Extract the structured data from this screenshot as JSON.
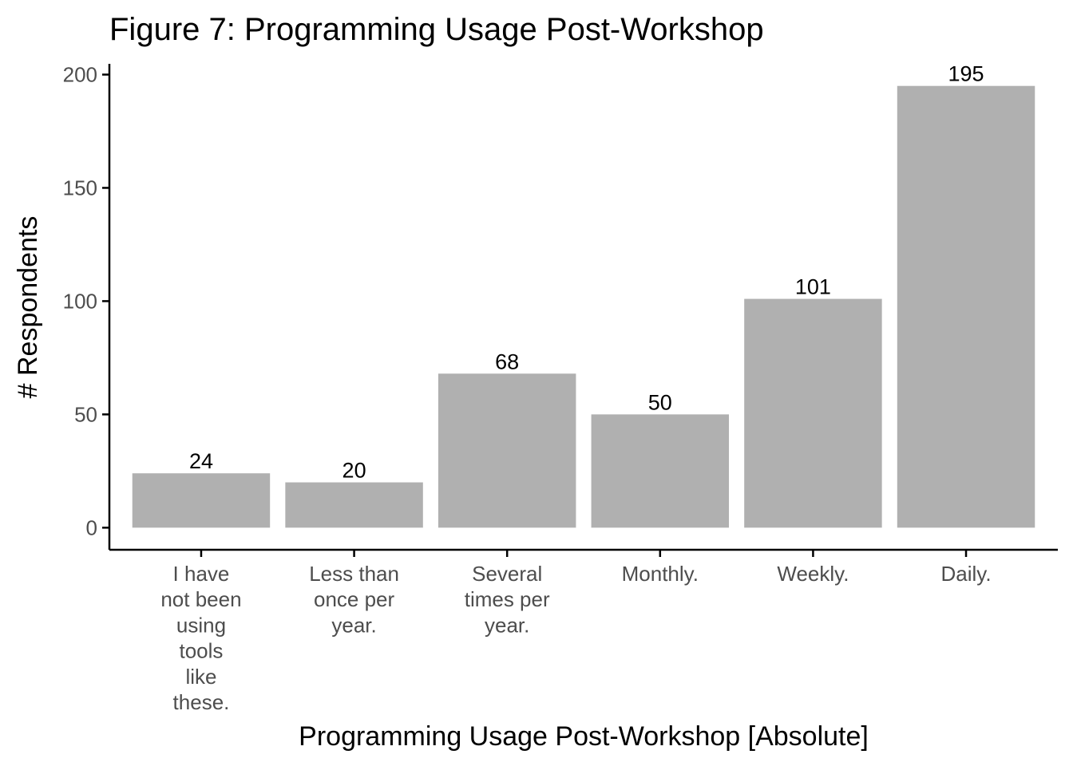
{
  "chart_data": {
    "type": "bar",
    "title": "Figure 7: Programming Usage Post-Workshop",
    "xlabel": "Programming Usage Post-Workshop [Absolute]",
    "ylabel": "# Respondents",
    "categories": [
      [
        "I have",
        "not been",
        "using",
        "tools",
        "like",
        "these."
      ],
      [
        "Less than",
        "once per",
        "year."
      ],
      [
        "Several",
        "times per",
        "year."
      ],
      [
        "Monthly."
      ],
      [
        "Weekly."
      ],
      [
        "Daily."
      ]
    ],
    "values": [
      24,
      20,
      68,
      50,
      101,
      195
    ],
    "data_labels": [
      "24",
      "20",
      "68",
      "50",
      "101",
      "195"
    ],
    "ylim": [
      -9.75,
      204.75
    ],
    "yticks": [
      0,
      50,
      100,
      150,
      200
    ],
    "grid": false,
    "legend": "none",
    "bar_color": "#b0b0b0",
    "axis_color": "#000000",
    "tick_label_color": "#4d4d4d"
  }
}
